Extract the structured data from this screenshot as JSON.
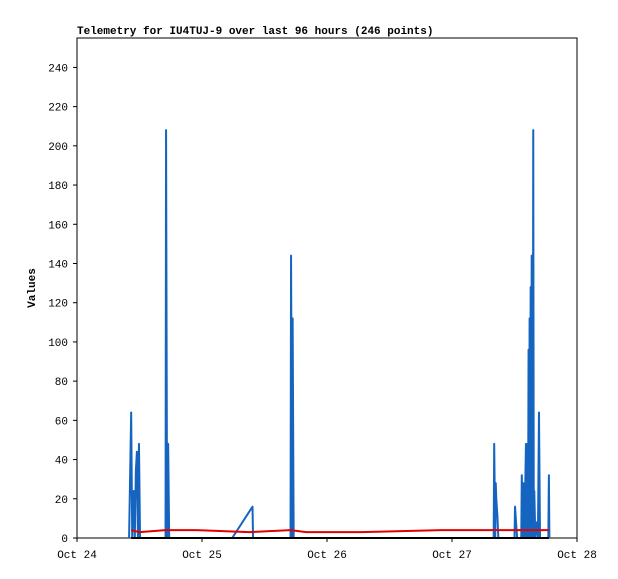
{
  "chart_data": {
    "type": "line",
    "title": "Telemetry for IU4TUJ-9 over last 96 hours (246 points)",
    "ylabel": "Values",
    "xlim": [
      0,
      96
    ],
    "xticks": [
      {
        "value": 0,
        "label": "Oct 24"
      },
      {
        "value": 24,
        "label": "Oct 25"
      },
      {
        "value": 48,
        "label": "Oct 26"
      },
      {
        "value": 72,
        "label": "Oct 27"
      },
      {
        "value": 96,
        "label": "Oct 28"
      }
    ],
    "ylim": [
      0,
      255
    ],
    "yticks": [
      0,
      20,
      40,
      60,
      80,
      100,
      120,
      140,
      160,
      180,
      200,
      220,
      240
    ],
    "grid": false,
    "series": [
      {
        "color": "#1565c0",
        "x": [
          10.0,
          10.4,
          10.6,
          10.9,
          11.1,
          11.3,
          11.5,
          11.7,
          11.9,
          12.1,
          17.0,
          17.1,
          17.3,
          17.5,
          17.7,
          29.8,
          33.7,
          33.8,
          41.0,
          41.1,
          41.3,
          41.4,
          41.6,
          80.0,
          80.1,
          80.3,
          80.4,
          80.5,
          80.7,
          80.9,
          84.0,
          84.1,
          84.3,
          84.5,
          85.3,
          85.4,
          85.6,
          85.7,
          85.9,
          86.2,
          86.3,
          86.5,
          86.6,
          86.7,
          86.8,
          86.9,
          87.0,
          87.1,
          87.2,
          87.3,
          87.5,
          87.6,
          87.7,
          87.8,
          88.0,
          88.3,
          88.5,
          88.7,
          88.9,
          90.5,
          90.6,
          90.7
        ],
        "values": [
          0,
          64,
          0,
          24,
          0,
          34,
          44,
          0,
          48,
          0,
          0,
          208,
          0,
          48,
          0,
          0,
          16,
          0,
          0,
          144,
          0,
          112,
          0,
          0,
          48,
          0,
          28,
          20,
          12,
          0,
          0,
          16,
          8,
          0,
          0,
          32,
          0,
          28,
          0,
          48,
          0,
          48,
          0,
          96,
          0,
          112,
          0,
          128,
          0,
          144,
          0,
          208,
          0,
          24,
          0,
          8,
          0,
          64,
          0,
          0,
          32,
          0
        ]
      },
      {
        "color": "#e00000",
        "x": [
          10.4,
          12,
          17,
          23,
          33,
          41,
          44,
          54.5,
          70,
          80,
          90.6
        ],
        "values": [
          4,
          3,
          4,
          4,
          3,
          4,
          3,
          3,
          4,
          4,
          4
        ]
      },
      {
        "color": "#000000",
        "x": [
          10.4,
          90.6
        ],
        "values": [
          0,
          0
        ]
      }
    ]
  }
}
